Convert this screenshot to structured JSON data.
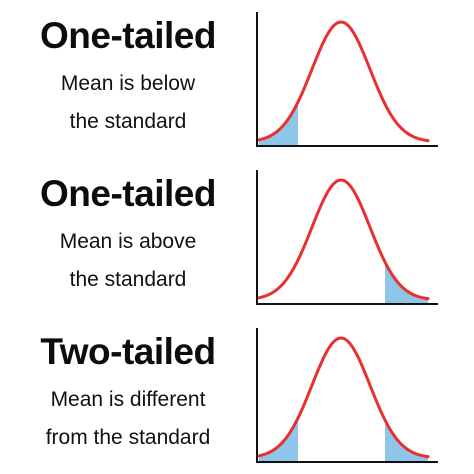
{
  "panels": [
    {
      "title": "One-tailed",
      "description_line1": "Mean is below",
      "description_line2": "the standard",
      "shaded_tails": [
        "left"
      ]
    },
    {
      "title": "One-tailed",
      "description_line1": "Mean is above",
      "description_line2": "the standard",
      "shaded_tails": [
        "right"
      ]
    },
    {
      "title": "Two-tailed",
      "description_line1": "Mean is different",
      "description_line2": "from the standard",
      "shaded_tails": [
        "left",
        "right"
      ]
    }
  ],
  "colors": {
    "curve": "#e8302f",
    "shade": "#8ec5e8",
    "axis": "#111111",
    "text": "#111111"
  }
}
